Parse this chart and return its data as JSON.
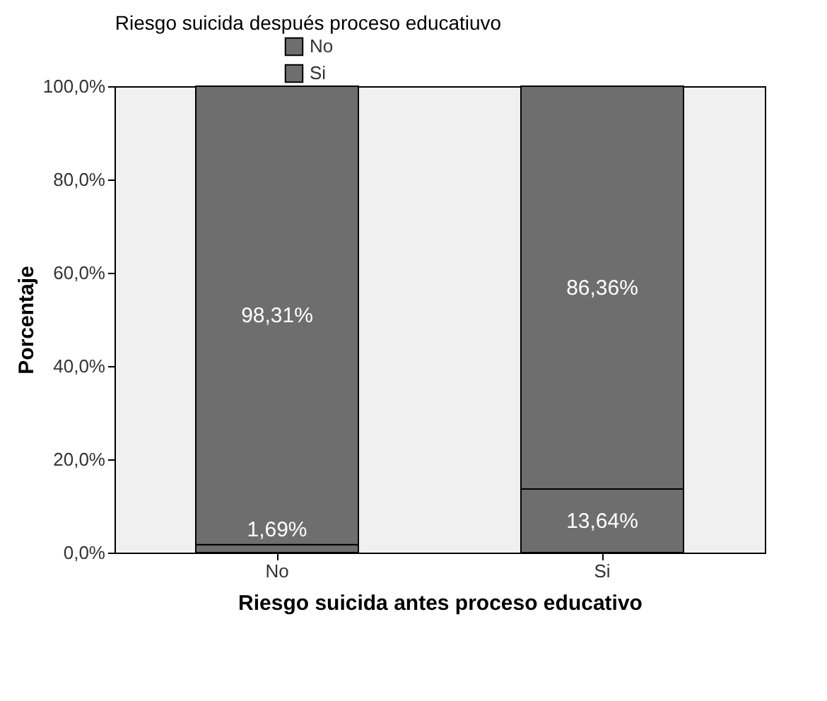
{
  "chart_data": {
    "type": "bar",
    "stacked": true,
    "xlabel": "Riesgo suicida antes proceso educativo",
    "ylabel": "Porcentaje",
    "legend_title": "Riesgo suicida después proceso educatiuvo",
    "legend": "top",
    "categories": [
      "No",
      "Si"
    ],
    "series": [
      {
        "name": "Si",
        "color": "#6e6e6e",
        "values": [
          1.69,
          13.64
        ],
        "value_labels": [
          "1,69%",
          "13,64%"
        ]
      },
      {
        "name": "No",
        "color": "#6e6e6e",
        "values": [
          98.31,
          86.36
        ],
        "value_labels": [
          "98,31%",
          "86,36%"
        ]
      }
    ],
    "ylim": [
      0,
      100
    ],
    "yticks": [
      {
        "value": 0,
        "label": "0,0%"
      },
      {
        "value": 20,
        "label": "20,0%"
      },
      {
        "value": 40,
        "label": "40,0%"
      },
      {
        "value": 60,
        "label": "60,0%"
      },
      {
        "value": 80,
        "label": "80,0%"
      },
      {
        "value": 100,
        "label": "100,0%"
      }
    ],
    "grid": false
  }
}
